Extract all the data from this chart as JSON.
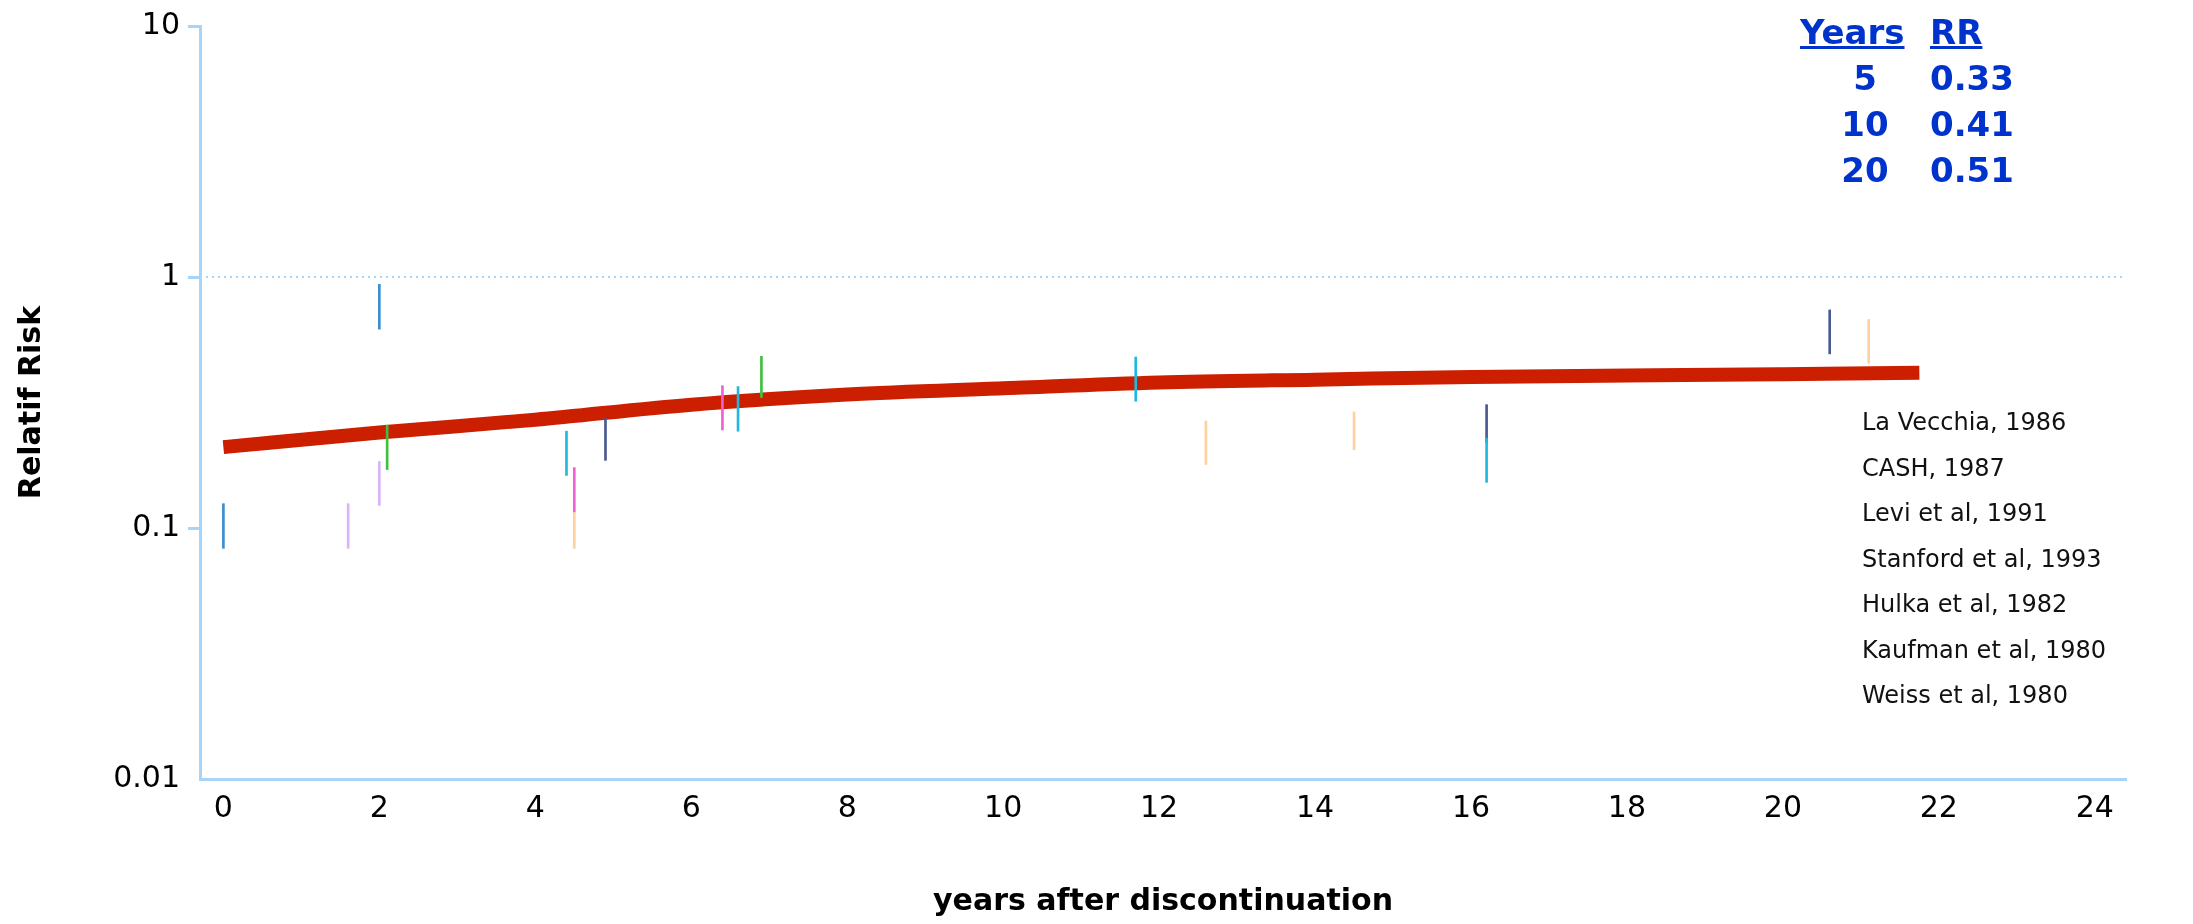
{
  "chart_data": {
    "type": "bar",
    "xlabel": "years after discontinuation",
    "ylabel": "Relatif Risk",
    "xlim": [
      -0.3,
      24.4
    ],
    "xticks": [
      0,
      2,
      4,
      6,
      8,
      10,
      12,
      14,
      16,
      18,
      20,
      22,
      24
    ],
    "ylim": [
      0.01,
      10
    ],
    "yticks": [
      0.01,
      0.1,
      1,
      10
    ],
    "log": true,
    "grid": false,
    "legend": false,
    "series": [
      {
        "color": "#3a8fd0",
        "x": [
          0,
          2.0
        ],
        "base": [
          0.083,
          0.62
        ],
        "values": [
          0.042,
          0.315
        ]
      },
      {
        "color": "#d8b4f8",
        "x": [
          1.6,
          2.0
        ],
        "base": [
          0.083,
          0.123
        ],
        "values": [
          0.042,
          0.061
        ]
      },
      {
        "color": "#40c040",
        "x": [
          2.1,
          6.9
        ],
        "base": [
          0.171,
          0.331
        ],
        "values": [
          0.086,
          0.152
        ]
      },
      {
        "color": "#20b8e0",
        "x": [
          4.4,
          6.6,
          11.7,
          16.2
        ],
        "base": [
          0.162,
          0.243,
          0.32,
          0.152
        ],
        "values": [
          0.081,
          0.123,
          0.16,
          0.076
        ]
      },
      {
        "color": "#f060d0",
        "x": [
          4.5,
          6.4
        ],
        "base": [
          0.116,
          0.246
        ],
        "values": [
          0.058,
          0.123
        ]
      },
      {
        "color": "#ffd0a0",
        "x": [
          4.5,
          12.6,
          14.5,
          21.1
        ],
        "base": [
          0.083,
          0.179,
          0.205,
          0.453
        ],
        "values": [
          0.033,
          0.088,
          0.085,
          0.224
        ]
      },
      {
        "color": "#4a5a90",
        "x": [
          4.9,
          16.2,
          20.6
        ],
        "base": [
          0.186,
          0.22,
          0.494
        ],
        "values": [
          0.087,
          0.09,
          0.245
        ]
      },
      {
        "type": "line",
        "color": "#cc1f00",
        "x": [
          0,
          2,
          4,
          6,
          8,
          10,
          12,
          14,
          16,
          18,
          20,
          21.75
        ],
        "values": [
          0.21,
          0.24,
          0.27,
          0.31,
          0.34,
          0.36,
          0.38,
          0.39,
          0.4,
          0.405,
          0.41,
          0.415
        ]
      }
    ],
    "ref_lines": [
      {
        "axis": "y",
        "value": 1,
        "color": "#a8d4f8",
        "line_style": "dotted"
      }
    ],
    "annotations": [
      "Years",
      "RR",
      "5",
      "0.33",
      "10",
      "0.41",
      "20",
      "0.51",
      "La Vecchia, 1986",
      "CASH, 1987",
      "Levi et al, 1991",
      "Stanford et al, 1993",
      "Hulka et al, 1982",
      "Kaufman et al, 1980",
      "Weiss et al, 1980"
    ]
  }
}
